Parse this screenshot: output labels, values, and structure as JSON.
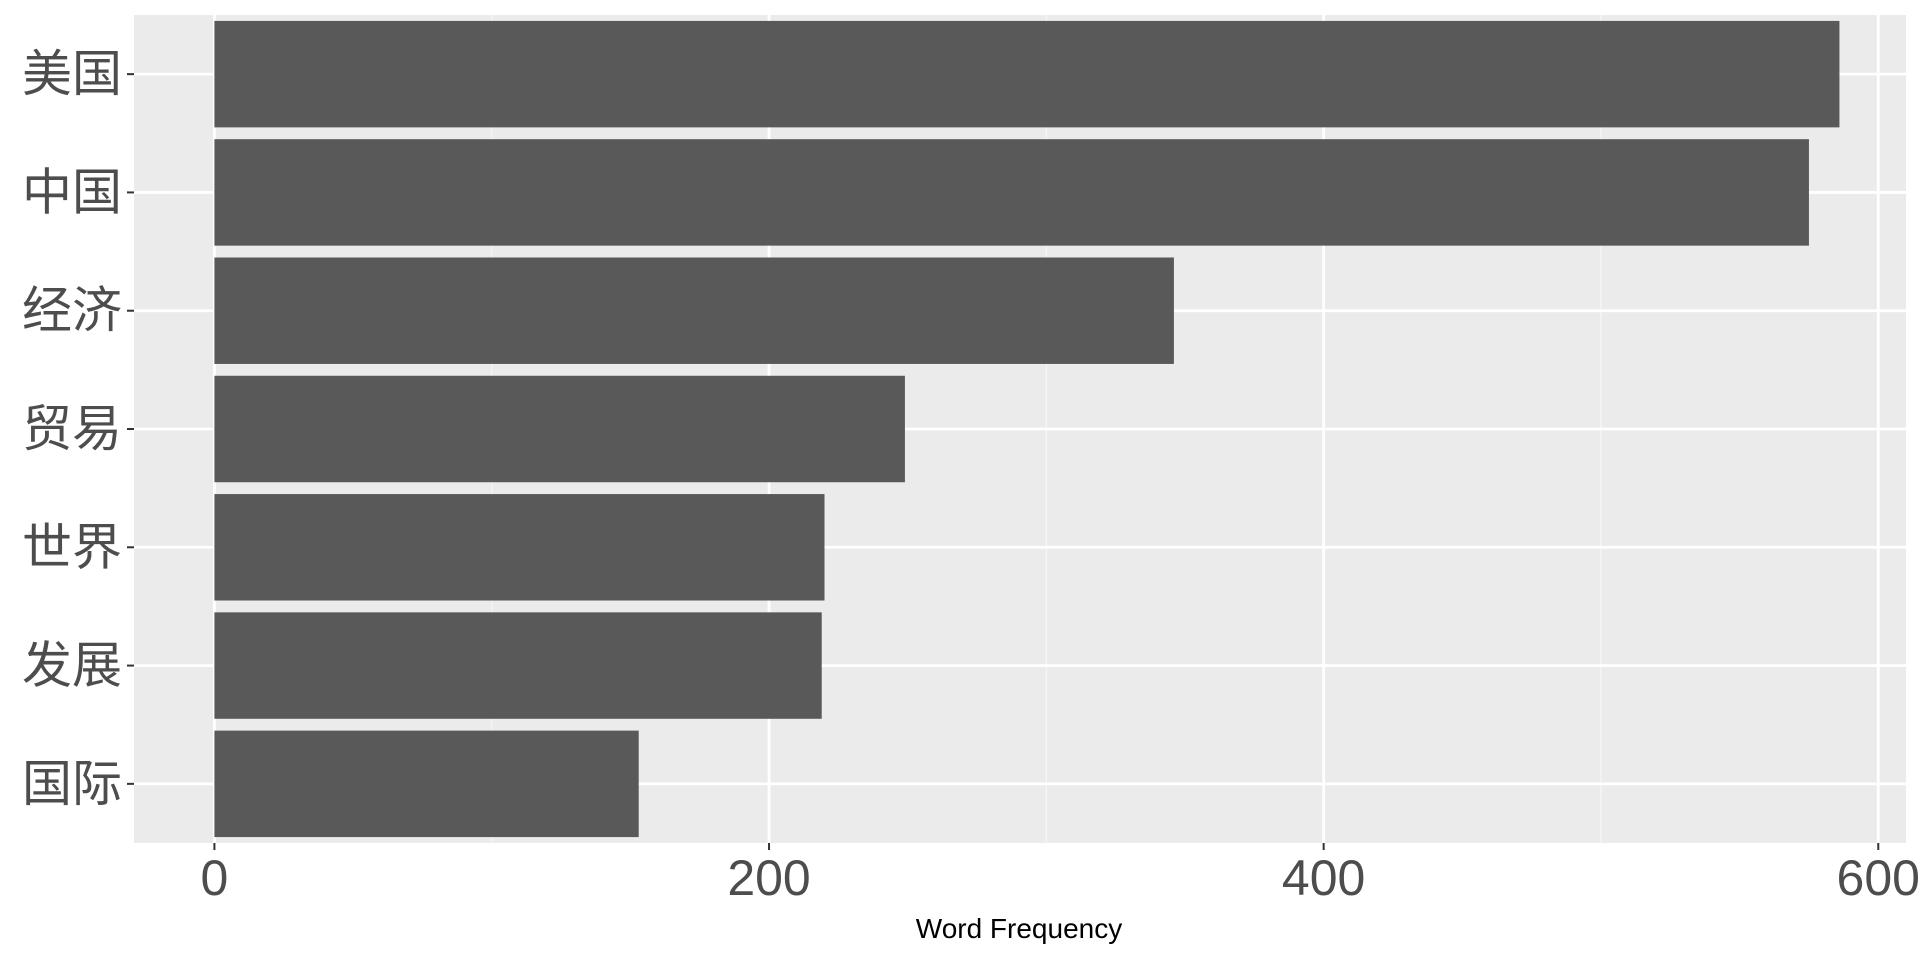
{
  "chart_data": {
    "type": "bar",
    "orientation": "horizontal",
    "categories": [
      "美国",
      "中国",
      "经济",
      "贸易",
      "世界",
      "发展",
      "国际"
    ],
    "values": [
      586,
      575,
      346,
      249,
      220,
      219,
      153
    ],
    "xlabel": "Word Frequency",
    "ylabel": "",
    "xlim": [
      -29,
      610
    ],
    "xticks": [
      0,
      200,
      400,
      600
    ],
    "x_minor_gridlines": [
      100,
      300,
      500
    ],
    "grid": true,
    "legend": "none"
  },
  "colors": {
    "panel_background": "#ebebeb",
    "grid_major": "#ffffff",
    "grid_minor": "#f5f5f5",
    "bar_fill": "#595959",
    "tick_text": "#4d4d4d",
    "axis_title": "#000000"
  }
}
